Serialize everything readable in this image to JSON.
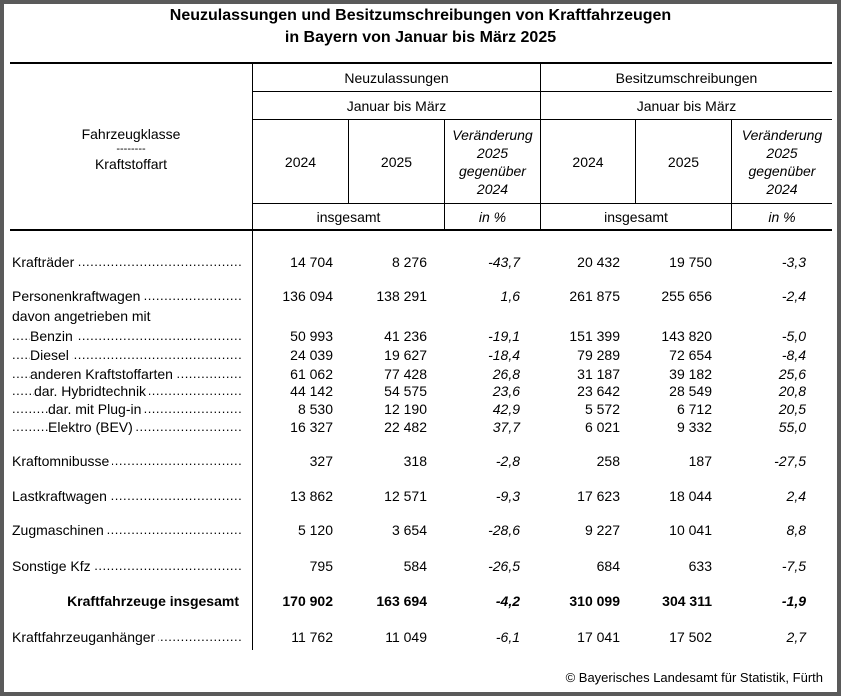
{
  "title_line1": "Neuzulassungen und Besitzumschreibungen von Kraftfahrzeugen",
  "title_line2": "in Bayern von Januar bis März 2025",
  "header": {
    "stub_line1": "Fahrzeugklasse",
    "stub_line2": "--------",
    "stub_line3": "Kraftstoffart",
    "group1": "Neuzulassungen",
    "group2": "Besitzumschreibungen",
    "period": "Januar bis März",
    "year1": "2024",
    "year2": "2025",
    "change_l1": "Veränderung",
    "change_l2": "2025",
    "change_l3": "gegenüber",
    "change_l4": "2024",
    "unit_abs": "insgesamt",
    "unit_pct": "in %"
  },
  "rows": [
    {
      "label": "Krafträder",
      "indent": 0,
      "values": [
        "14 704",
        "8 276",
        "-43,7",
        "20 432",
        "19 750",
        "-3,3"
      ]
    },
    {
      "label": "Personenkraftwagen",
      "indent": 0,
      "values": [
        "136 094",
        "138 291",
        "1,6",
        "261 875",
        "255 656",
        "-2,4"
      ]
    },
    {
      "label": "davon angetrieben mit",
      "indent": 0,
      "nodots": true,
      "values": [
        "",
        "",
        "",
        "",
        "",
        ""
      ]
    },
    {
      "label": "Benzin",
      "indent": 1,
      "values": [
        "50 993",
        "41 236",
        "-19,1",
        "151 399",
        "143 820",
        "-5,0"
      ]
    },
    {
      "label": "Diesel",
      "indent": 1,
      "values": [
        "24 039",
        "19 627",
        "-18,4",
        "79 289",
        "72 654",
        "-8,4"
      ]
    },
    {
      "label": "anderen Kraftstoffarten",
      "indent": 1,
      "values": [
        "61 062",
        "77 428",
        "26,8",
        "31 187",
        "39 182",
        "25,6"
      ]
    },
    {
      "label": "dar. Hybridtechnik",
      "indent": 2,
      "values": [
        "44 142",
        "54 575",
        "23,6",
        "23 642",
        "28 549",
        "20,8"
      ]
    },
    {
      "label": "dar. mit Plug-in",
      "indent": 3,
      "values": [
        "8 530",
        "12 190",
        "42,9",
        "5 572",
        "6 712",
        "20,5"
      ]
    },
    {
      "label": "Elektro (BEV)",
      "indent": 3,
      "values": [
        "16 327",
        "22 482",
        "37,7",
        "6 021",
        "9 332",
        "55,0"
      ]
    },
    {
      "label": "Kraftomnibusse",
      "indent": 0,
      "values": [
        "327",
        "318",
        "-2,8",
        "258",
        "187",
        "-27,5"
      ]
    },
    {
      "label": "Lastkraftwagen",
      "indent": 0,
      "values": [
        "13 862",
        "12 571",
        "-9,3",
        "17 623",
        "18 044",
        "2,4"
      ]
    },
    {
      "label": "Zugmaschinen",
      "indent": 0,
      "values": [
        "5 120",
        "3 654",
        "-28,6",
        "9 227",
        "10 041",
        "8,8"
      ]
    },
    {
      "label": "Sonstige Kfz",
      "indent": 0,
      "values": [
        "795",
        "584",
        "-26,5",
        "684",
        "633",
        "-7,5"
      ]
    },
    {
      "label": "Kraftfahrzeuge insgesamt",
      "indent": 0,
      "bold": true,
      "nodots": true,
      "values": [
        "170 902",
        "163 694",
        "-4,2",
        "310 099",
        "304 311",
        "-1,9"
      ]
    },
    {
      "label": "Kraftfahrzeuganhänger",
      "indent": 0,
      "values": [
        "11 762",
        "11 049",
        "-6,1",
        "17 041",
        "17 502",
        "2,7"
      ]
    }
  ],
  "copyright": "© Bayerisches Landesamt für Statistik, Fürth"
}
